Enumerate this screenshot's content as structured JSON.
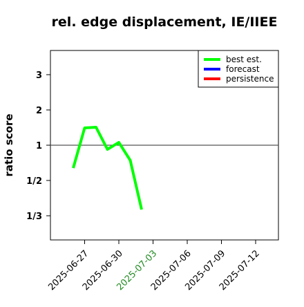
{
  "chart_data": {
    "type": "line",
    "title": "rel. edge displacement, IE/IIEE",
    "ylabel": "ratio score",
    "yscale": "ratio",
    "x": [
      "2025-06-26",
      "2025-06-27",
      "2025-06-28",
      "2025-06-29",
      "2025-06-30",
      "2025-07-01",
      "2025-07-02"
    ],
    "series": [
      {
        "name": "best est.",
        "color": "#00ff00",
        "values": [
          0.607,
          1.49,
          1.51,
          0.895,
          1.08,
          0.7,
          0.354
        ]
      },
      {
        "name": "forecast",
        "color": "#0000ff",
        "values": [
          null,
          null,
          null,
          null,
          null,
          null,
          null
        ]
      },
      {
        "name": "persistence",
        "color": "#ff0000",
        "values": [
          null,
          null,
          null,
          null,
          null,
          null,
          null
        ]
      }
    ],
    "reference_line": 1,
    "xlim": [
      "2025-06-24",
      "2025-07-14"
    ],
    "xticks": [
      "2025-06-27",
      "2025-06-30",
      "2025-07-03",
      "2025-07-06",
      "2025-07-09",
      "2025-07-12"
    ],
    "xtick_colors": [
      "#000000",
      "#000000",
      "#228b22",
      "#000000",
      "#000000",
      "#000000"
    ],
    "ylim": [
      0.2713,
      3.686
    ],
    "yticks": [
      {
        "value": 0.3333,
        "label": "1/3"
      },
      {
        "value": 0.5,
        "label": "1/2"
      },
      1,
      2,
      3
    ],
    "legend": "top-right"
  }
}
